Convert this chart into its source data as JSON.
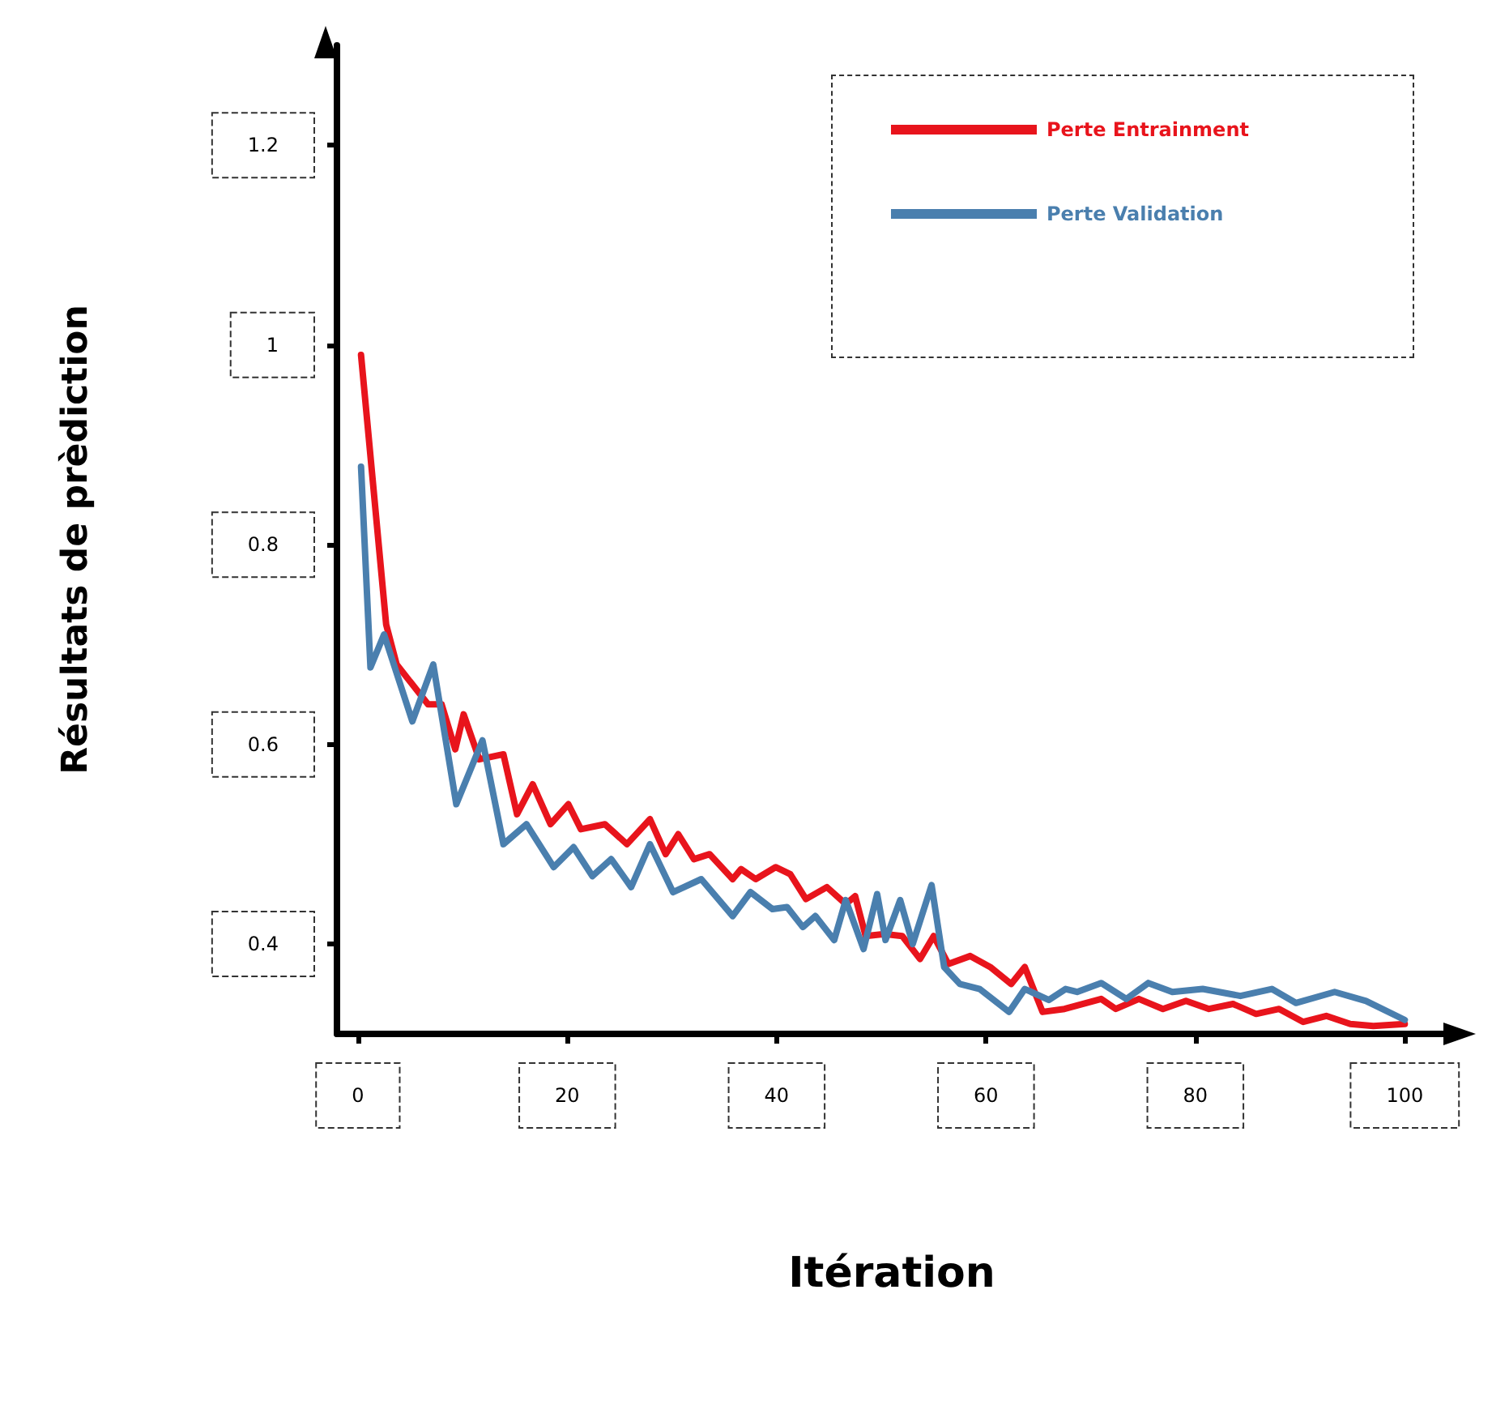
{
  "chart_data": {
    "type": "line",
    "xlabel": "Itération",
    "ylabel": "Résultats de prèdiction",
    "xlim": [
      -2,
      104
    ],
    "xticks": [
      0,
      20,
      40,
      60,
      80,
      100
    ],
    "ylim": [
      0.31,
      1.3
    ],
    "yticks": [
      0.4,
      0.6,
      0.8,
      1.0,
      1.2
    ],
    "grid": false,
    "legend": "top right",
    "marker": "none",
    "line_style": "solid",
    "series": [
      {
        "name": "Perte Entrainment",
        "color": "#e8141c",
        "x": [
          0.3,
          2.7,
          3.7,
          6.7,
          8,
          9.3,
          10.1,
          11.6,
          13.9,
          15.2,
          16.7,
          18.4,
          20.1,
          21.3,
          23.6,
          25.7,
          27.9,
          29.4,
          30.6,
          32.1,
          33.6,
          35.8,
          36.6,
          38,
          39.9,
          41.3,
          42.8,
          44.8,
          46.6,
          47.5,
          48.5,
          50.3,
          52,
          53.7,
          55,
          56.4,
          58.5,
          60.4,
          62.4,
          63.7,
          65.4,
          67.5,
          71,
          72.4,
          74.6,
          76.9,
          79.1,
          81.3,
          83.6,
          85.8,
          88,
          90.3,
          92.5,
          94.8,
          97,
          100
        ],
        "values": [
          0.99,
          0.72,
          0.68,
          0.64,
          0.64,
          0.595,
          0.63,
          0.585,
          0.59,
          0.53,
          0.56,
          0.52,
          0.54,
          0.515,
          0.52,
          0.5,
          0.525,
          0.49,
          0.51,
          0.485,
          0.49,
          0.465,
          0.475,
          0.465,
          0.477,
          0.47,
          0.445,
          0.457,
          0.44,
          0.448,
          0.408,
          0.41,
          0.408,
          0.385,
          0.408,
          0.38,
          0.388,
          0.377,
          0.36,
          0.377,
          0.332,
          0.335,
          0.345,
          0.335,
          0.345,
          0.335,
          0.343,
          0.335,
          0.34,
          0.33,
          0.335,
          0.322,
          0.328,
          0.32,
          0.318,
          0.32
        ]
      },
      {
        "name": "Perte Validation",
        "color": "#4a7fae",
        "x": [
          0.3,
          1.2,
          2.5,
          5.2,
          7.2,
          9.4,
          11.9,
          13.9,
          16.1,
          18.7,
          20.6,
          22.4,
          24.2,
          26.1,
          27.9,
          30.1,
          32.8,
          35.8,
          37.5,
          39.6,
          41,
          42.5,
          43.7,
          45.5,
          46.6,
          48.3,
          49.6,
          50.4,
          51.8,
          53,
          54.8,
          56,
          57.5,
          59.4,
          62.2,
          63.7,
          66,
          67.6,
          68.7,
          71,
          73.4,
          75.5,
          77.8,
          80.7,
          84.3,
          87.3,
          89.6,
          93.3,
          96.3,
          100
        ],
        "values": [
          0.878,
          0.677,
          0.71,
          0.623,
          0.68,
          0.54,
          0.604,
          0.5,
          0.52,
          0.477,
          0.497,
          0.468,
          0.485,
          0.457,
          0.5,
          0.452,
          0.465,
          0.428,
          0.452,
          0.435,
          0.437,
          0.417,
          0.428,
          0.404,
          0.444,
          0.395,
          0.45,
          0.404,
          0.444,
          0.4,
          0.459,
          0.377,
          0.36,
          0.355,
          0.332,
          0.355,
          0.344,
          0.355,
          0.352,
          0.361,
          0.345,
          0.361,
          0.352,
          0.355,
          0.348,
          0.355,
          0.341,
          0.352,
          0.343,
          0.324
        ]
      }
    ]
  }
}
